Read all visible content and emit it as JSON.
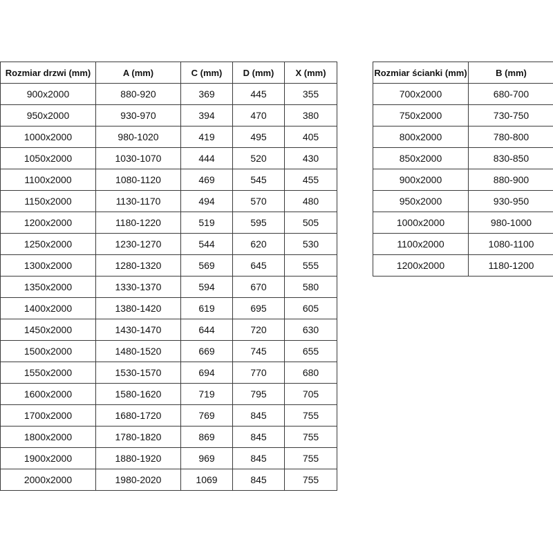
{
  "doors_table": {
    "headers": [
      "Rozmiar drzwi (mm)",
      "A (mm)",
      "C (mm)",
      "D (mm)",
      "X (mm)"
    ],
    "rows": [
      [
        "900x2000",
        "880-920",
        "369",
        "445",
        "355"
      ],
      [
        "950x2000",
        "930-970",
        "394",
        "470",
        "380"
      ],
      [
        "1000x2000",
        "980-1020",
        "419",
        "495",
        "405"
      ],
      [
        "1050x2000",
        "1030-1070",
        "444",
        "520",
        "430"
      ],
      [
        "1100x2000",
        "1080-1120",
        "469",
        "545",
        "455"
      ],
      [
        "1150x2000",
        "1130-1170",
        "494",
        "570",
        "480"
      ],
      [
        "1200x2000",
        "1180-1220",
        "519",
        "595",
        "505"
      ],
      [
        "1250x2000",
        "1230-1270",
        "544",
        "620",
        "530"
      ],
      [
        "1300x2000",
        "1280-1320",
        "569",
        "645",
        "555"
      ],
      [
        "1350x2000",
        "1330-1370",
        "594",
        "670",
        "580"
      ],
      [
        "1400x2000",
        "1380-1420",
        "619",
        "695",
        "605"
      ],
      [
        "1450x2000",
        "1430-1470",
        "644",
        "720",
        "630"
      ],
      [
        "1500x2000",
        "1480-1520",
        "669",
        "745",
        "655"
      ],
      [
        "1550x2000",
        "1530-1570",
        "694",
        "770",
        "680"
      ],
      [
        "1600x2000",
        "1580-1620",
        "719",
        "795",
        "705"
      ],
      [
        "1700x2000",
        "1680-1720",
        "769",
        "845",
        "755"
      ],
      [
        "1800x2000",
        "1780-1820",
        "869",
        "845",
        "755"
      ],
      [
        "1900x2000",
        "1880-1920",
        "969",
        "845",
        "755"
      ],
      [
        "2000x2000",
        "1980-2020",
        "1069",
        "845",
        "755"
      ]
    ]
  },
  "walls_table": {
    "headers": [
      "Rozmiar ścianki (mm)",
      "B (mm)"
    ],
    "rows": [
      [
        "700x2000",
        "680-700"
      ],
      [
        "750x2000",
        "730-750"
      ],
      [
        "800x2000",
        "780-800"
      ],
      [
        "850x2000",
        "830-850"
      ],
      [
        "900x2000",
        "880-900"
      ],
      [
        "950x2000",
        "930-950"
      ],
      [
        "1000x2000",
        "980-1000"
      ],
      [
        "1100x2000",
        "1080-1100"
      ],
      [
        "1200x2000",
        "1180-1200"
      ]
    ]
  }
}
